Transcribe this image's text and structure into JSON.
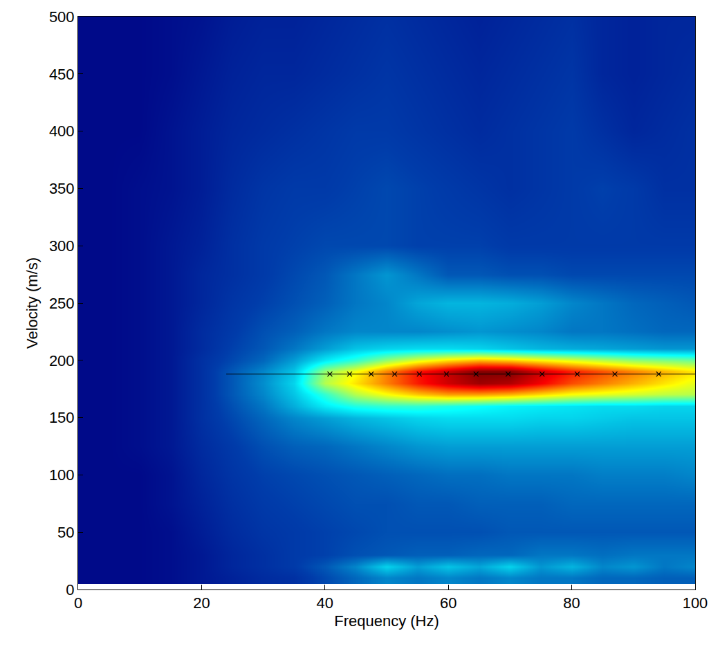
{
  "chart_data": {
    "type": "heatmap",
    "x_label": "Frequency (Hz)",
    "y_label": "Velocity (m/s)",
    "xlim": [
      0,
      100
    ],
    "ylim": [
      0,
      500
    ],
    "xticks": [
      0,
      20,
      40,
      60,
      80,
      100
    ],
    "yticks": [
      0,
      50,
      100,
      150,
      200,
      250,
      300,
      350,
      400,
      450,
      500
    ],
    "grid": false,
    "heatmap": {
      "color": "Jet",
      "zlim": [
        0,
        1
      ],
      "x": [
        0,
        5,
        10,
        15,
        20,
        25,
        30,
        35,
        40,
        45,
        50,
        55,
        60,
        65,
        70,
        75,
        80,
        85,
        90,
        95,
        100
      ],
      "y": [
        10,
        20,
        30,
        50,
        75,
        100,
        125,
        150,
        160,
        170,
        180,
        190,
        200,
        210,
        225,
        250,
        275,
        300,
        350,
        400,
        450,
        500
      ],
      "z": [
        [
          0.02,
          0.02,
          0.02,
          0.03,
          0.05,
          0.07,
          0.09,
          0.1,
          0.14,
          0.18,
          0.22,
          0.2,
          0.22,
          0.2,
          0.22,
          0.2,
          0.2,
          0.18,
          0.18,
          0.17,
          0.17
        ],
        [
          0.02,
          0.02,
          0.02,
          0.03,
          0.05,
          0.08,
          0.1,
          0.12,
          0.16,
          0.22,
          0.32,
          0.25,
          0.3,
          0.26,
          0.32,
          0.24,
          0.28,
          0.22,
          0.24,
          0.2,
          0.22
        ],
        [
          0.02,
          0.02,
          0.02,
          0.03,
          0.05,
          0.08,
          0.1,
          0.12,
          0.13,
          0.15,
          0.16,
          0.17,
          0.17,
          0.18,
          0.18,
          0.2,
          0.2,
          0.19,
          0.2,
          0.2,
          0.2
        ],
        [
          0.02,
          0.02,
          0.02,
          0.03,
          0.06,
          0.09,
          0.11,
          0.12,
          0.13,
          0.14,
          0.15,
          0.15,
          0.15,
          0.15,
          0.16,
          0.16,
          0.16,
          0.16,
          0.16,
          0.16,
          0.16
        ],
        [
          0.02,
          0.02,
          0.02,
          0.04,
          0.07,
          0.1,
          0.12,
          0.13,
          0.14,
          0.15,
          0.15,
          0.16,
          0.16,
          0.17,
          0.17,
          0.17,
          0.18,
          0.18,
          0.18,
          0.18,
          0.18
        ],
        [
          0.02,
          0.02,
          0.02,
          0.04,
          0.08,
          0.11,
          0.13,
          0.14,
          0.15,
          0.16,
          0.17,
          0.18,
          0.19,
          0.19,
          0.2,
          0.2,
          0.2,
          0.21,
          0.21,
          0.21,
          0.22
        ],
        [
          0.02,
          0.02,
          0.03,
          0.05,
          0.09,
          0.12,
          0.15,
          0.17,
          0.18,
          0.2,
          0.22,
          0.24,
          0.25,
          0.25,
          0.25,
          0.25,
          0.25,
          0.25,
          0.25,
          0.25,
          0.25
        ],
        [
          0.02,
          0.02,
          0.03,
          0.05,
          0.1,
          0.14,
          0.18,
          0.22,
          0.25,
          0.28,
          0.3,
          0.32,
          0.33,
          0.33,
          0.33,
          0.32,
          0.32,
          0.31,
          0.3,
          0.3,
          0.3
        ],
        [
          0.02,
          0.02,
          0.03,
          0.05,
          0.1,
          0.15,
          0.2,
          0.27,
          0.35,
          0.4,
          0.42,
          0.42,
          0.4,
          0.38,
          0.36,
          0.35,
          0.34,
          0.33,
          0.33,
          0.32,
          0.32
        ],
        [
          0.02,
          0.02,
          0.03,
          0.05,
          0.1,
          0.16,
          0.22,
          0.3,
          0.42,
          0.55,
          0.62,
          0.68,
          0.72,
          0.72,
          0.7,
          0.66,
          0.62,
          0.6,
          0.58,
          0.56,
          0.55
        ],
        [
          0.02,
          0.02,
          0.03,
          0.05,
          0.1,
          0.16,
          0.23,
          0.32,
          0.55,
          0.65,
          0.75,
          0.85,
          0.92,
          0.97,
          0.95,
          0.88,
          0.8,
          0.75,
          0.7,
          0.65,
          0.6
        ],
        [
          0.02,
          0.02,
          0.03,
          0.05,
          0.1,
          0.16,
          0.22,
          0.3,
          0.52,
          0.62,
          0.75,
          0.86,
          0.93,
          1.0,
          1.0,
          0.92,
          0.85,
          0.8,
          0.75,
          0.7,
          0.65
        ],
        [
          0.02,
          0.02,
          0.03,
          0.05,
          0.1,
          0.14,
          0.18,
          0.25,
          0.35,
          0.42,
          0.52,
          0.6,
          0.66,
          0.7,
          0.68,
          0.64,
          0.6,
          0.56,
          0.52,
          0.5,
          0.48
        ],
        [
          0.02,
          0.02,
          0.03,
          0.05,
          0.09,
          0.13,
          0.16,
          0.2,
          0.25,
          0.3,
          0.32,
          0.33,
          0.33,
          0.32,
          0.3,
          0.28,
          0.27,
          0.26,
          0.25,
          0.24,
          0.24
        ],
        [
          0.02,
          0.02,
          0.03,
          0.05,
          0.09,
          0.12,
          0.15,
          0.17,
          0.2,
          0.22,
          0.22,
          0.22,
          0.23,
          0.24,
          0.23,
          0.22,
          0.2,
          0.2,
          0.19,
          0.18,
          0.18
        ],
        [
          0.02,
          0.02,
          0.03,
          0.05,
          0.08,
          0.11,
          0.13,
          0.15,
          0.17,
          0.2,
          0.22,
          0.26,
          0.28,
          0.28,
          0.27,
          0.25,
          0.22,
          0.2,
          0.18,
          0.17,
          0.16
        ],
        [
          0.02,
          0.02,
          0.03,
          0.05,
          0.08,
          0.1,
          0.12,
          0.14,
          0.16,
          0.2,
          0.24,
          0.2,
          0.16,
          0.16,
          0.15,
          0.15,
          0.14,
          0.14,
          0.14,
          0.14,
          0.14
        ],
        [
          0.02,
          0.02,
          0.03,
          0.05,
          0.07,
          0.1,
          0.12,
          0.13,
          0.14,
          0.14,
          0.14,
          0.13,
          0.13,
          0.13,
          0.12,
          0.12,
          0.12,
          0.12,
          0.12,
          0.12,
          0.12
        ],
        [
          0.02,
          0.02,
          0.03,
          0.04,
          0.06,
          0.09,
          0.11,
          0.12,
          0.12,
          0.13,
          0.14,
          0.13,
          0.12,
          0.11,
          0.1,
          0.11,
          0.12,
          0.13,
          0.12,
          0.1,
          0.1
        ],
        [
          0.02,
          0.02,
          0.02,
          0.04,
          0.06,
          0.08,
          0.09,
          0.1,
          0.11,
          0.12,
          0.12,
          0.11,
          0.1,
          0.09,
          0.1,
          0.11,
          0.12,
          0.1,
          0.08,
          0.09,
          0.1
        ],
        [
          0.02,
          0.02,
          0.02,
          0.03,
          0.05,
          0.07,
          0.08,
          0.08,
          0.09,
          0.1,
          0.11,
          0.1,
          0.09,
          0.08,
          0.09,
          0.1,
          0.11,
          0.08,
          0.07,
          0.08,
          0.09
        ],
        [
          0.02,
          0.02,
          0.02,
          0.03,
          0.04,
          0.06,
          0.07,
          0.07,
          0.08,
          0.09,
          0.1,
          0.09,
          0.08,
          0.07,
          0.08,
          0.09,
          0.1,
          0.08,
          0.07,
          0.08,
          0.08
        ]
      ]
    },
    "series": [
      {
        "type": "line",
        "color": "#000000",
        "line_style": "solid",
        "x": [
          24,
          100
        ],
        "values": [
          188,
          188
        ]
      },
      {
        "type": "scatter",
        "color": "#000000",
        "marker": "x",
        "x": [
          40.8,
          44.0,
          47.5,
          51.3,
          55.3,
          59.7,
          64.5,
          69.7,
          75.2,
          80.9,
          87.0,
          94.1
        ],
        "values": [
          188,
          188,
          188,
          188,
          188,
          188,
          188,
          188,
          188,
          188,
          188,
          188
        ]
      }
    ]
  }
}
